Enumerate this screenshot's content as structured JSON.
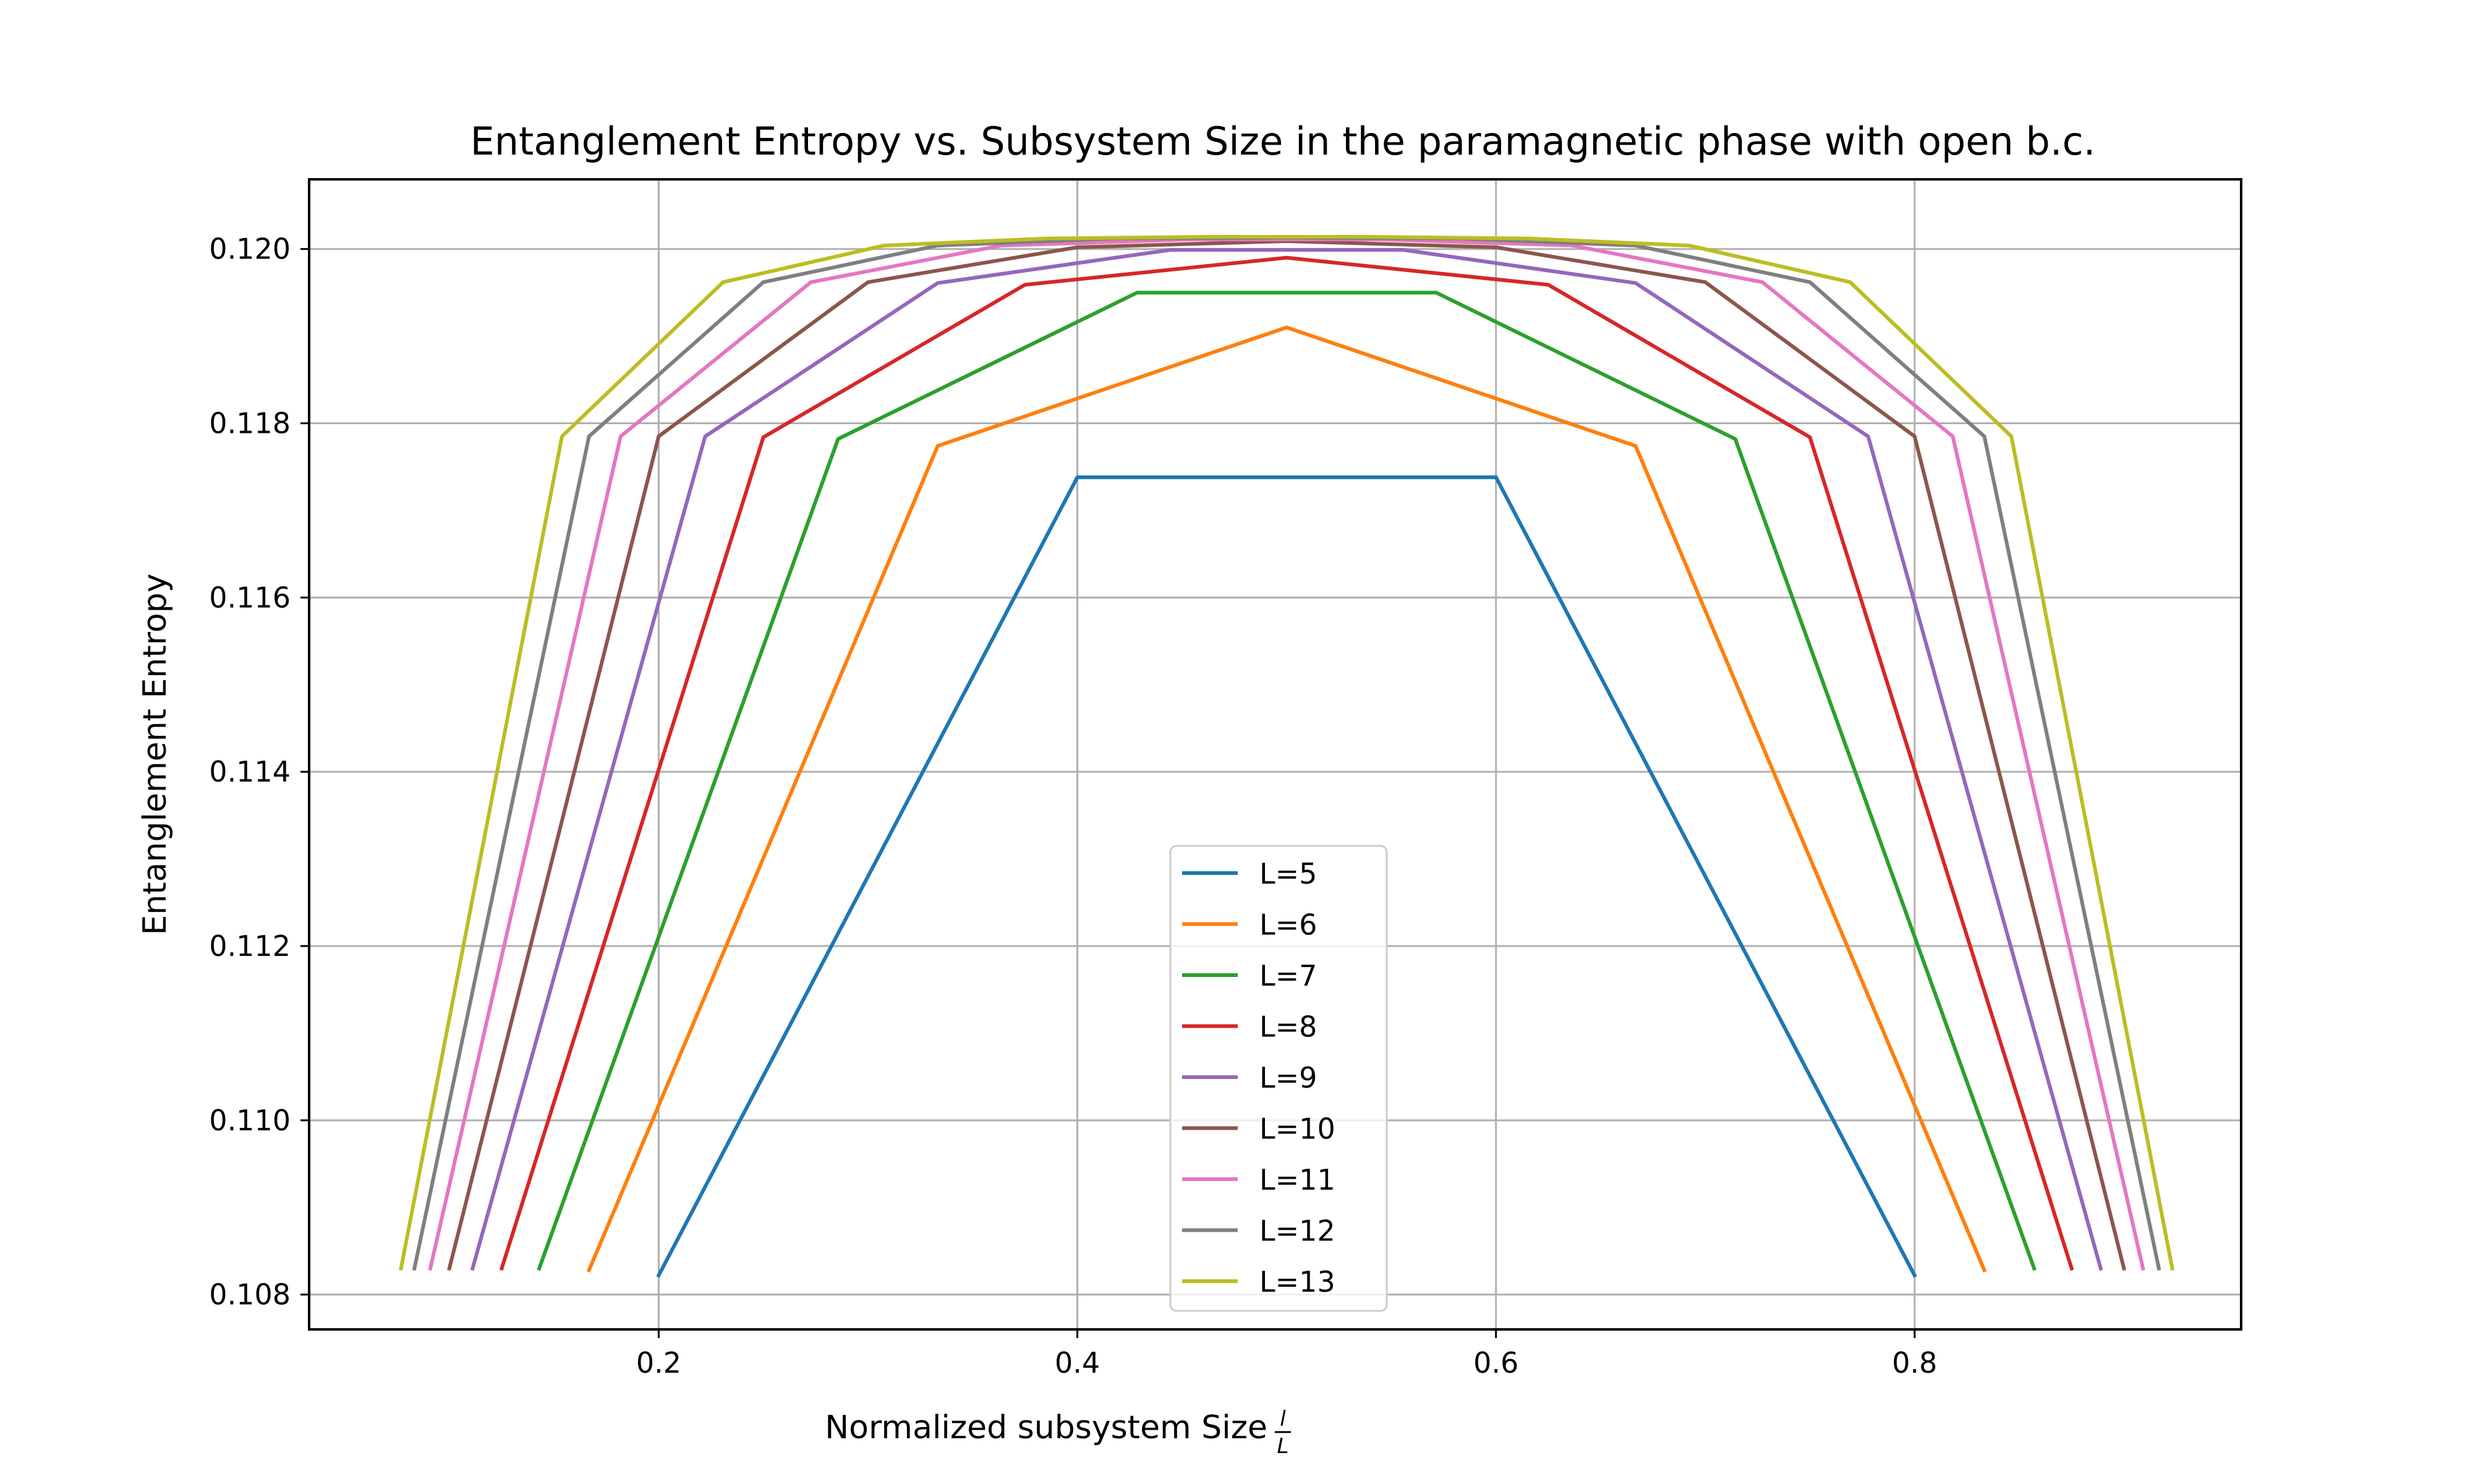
{
  "chart_data": {
    "type": "line",
    "title": "Entanglement Entropy vs. Subsystem Size in the paramagnetic phase with open b.c.",
    "xlabel": "Normalized subsystem Size",
    "xlabel_fraction": {
      "numerator": "l",
      "denominator": "L"
    },
    "ylabel": "Entanglement Entropy",
    "xlim": [
      0.033,
      0.956
    ],
    "ylim": [
      0.1076,
      0.1208
    ],
    "xticks": [
      0.2,
      0.4,
      0.6,
      0.8
    ],
    "xtick_labels": [
      "0.2",
      "0.4",
      "0.6",
      "0.8"
    ],
    "yticks": [
      0.108,
      0.11,
      0.112,
      0.114,
      0.116,
      0.118,
      0.12
    ],
    "ytick_labels": [
      "0.108",
      "0.110",
      "0.112",
      "0.114",
      "0.116",
      "0.118",
      "0.120"
    ],
    "grid": true,
    "legend_position": "lower-center",
    "series": [
      {
        "name": "L=5",
        "color": "#1f77b4",
        "x": [
          0.2,
          0.4,
          0.6,
          0.8
        ],
        "y": [
          0.10822,
          0.11738,
          0.11738,
          0.10822
        ]
      },
      {
        "name": "L=6",
        "color": "#ff7f0e",
        "x": [
          0.1667,
          0.3333,
          0.5,
          0.6667,
          0.8333
        ],
        "y": [
          0.10828,
          0.11774,
          0.1191,
          0.11774,
          0.10828
        ]
      },
      {
        "name": "L=7",
        "color": "#2ca02c",
        "x": [
          0.1429,
          0.2857,
          0.4286,
          0.5714,
          0.7143,
          0.8571
        ],
        "y": [
          0.1083,
          0.11782,
          0.1195,
          0.1195,
          0.11782,
          0.1083
        ]
      },
      {
        "name": "L=8",
        "color": "#d62728",
        "x": [
          0.125,
          0.25,
          0.375,
          0.5,
          0.625,
          0.75,
          0.875
        ],
        "y": [
          0.1083,
          0.11784,
          0.11959,
          0.1199,
          0.11959,
          0.11784,
          0.1083
        ]
      },
      {
        "name": "L=9",
        "color": "#9467bd",
        "x": [
          0.1111,
          0.2222,
          0.3333,
          0.4444,
          0.5556,
          0.6667,
          0.7778,
          0.8889
        ],
        "y": [
          0.1083,
          0.11785,
          0.11961,
          0.11999,
          0.11999,
          0.11961,
          0.11785,
          0.1083
        ]
      },
      {
        "name": "L=10",
        "color": "#8c564b",
        "x": [
          0.1,
          0.2,
          0.3,
          0.4,
          0.5,
          0.6,
          0.7,
          0.8,
          0.9
        ],
        "y": [
          0.1083,
          0.11785,
          0.11962,
          0.12002,
          0.12009,
          0.12002,
          0.11962,
          0.11785,
          0.1083
        ]
      },
      {
        "name": "L=11",
        "color": "#e377c2",
        "x": [
          0.0909,
          0.1818,
          0.2727,
          0.3636,
          0.4545,
          0.5455,
          0.6364,
          0.7273,
          0.8182,
          0.9091
        ],
        "y": [
          0.1083,
          0.11785,
          0.11962,
          0.12004,
          0.12011,
          0.12011,
          0.12004,
          0.11962,
          0.11785,
          0.1083
        ]
      },
      {
        "name": "L=12",
        "color": "#7f7f7f",
        "x": [
          0.0833,
          0.1667,
          0.25,
          0.3333,
          0.4167,
          0.5,
          0.5833,
          0.6667,
          0.75,
          0.8333,
          0.9167
        ],
        "y": [
          0.1083,
          0.11785,
          0.11962,
          0.12004,
          0.12012,
          0.12013,
          0.12012,
          0.12004,
          0.11962,
          0.11785,
          0.1083
        ]
      },
      {
        "name": "L=13",
        "color": "#bcbd22",
        "x": [
          0.0769,
          0.1538,
          0.2308,
          0.3077,
          0.3846,
          0.4615,
          0.5385,
          0.6154,
          0.6923,
          0.7692,
          0.8462,
          0.9231
        ],
        "y": [
          0.1083,
          0.11785,
          0.11962,
          0.12004,
          0.12012,
          0.12014,
          0.12014,
          0.12012,
          0.12004,
          0.11962,
          0.11785,
          0.1083
        ]
      }
    ]
  }
}
